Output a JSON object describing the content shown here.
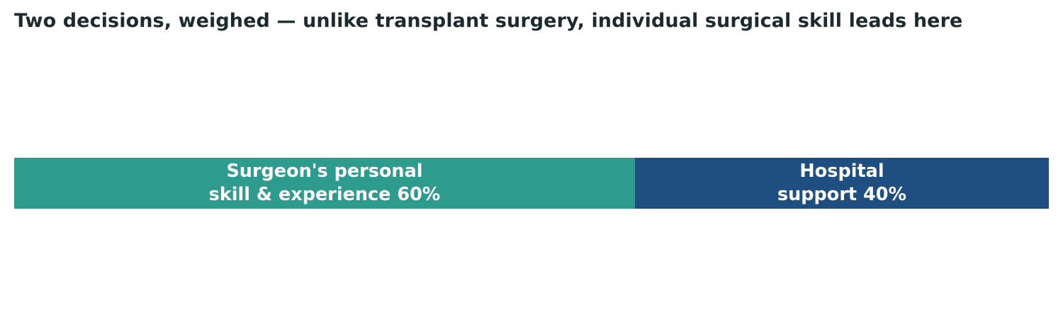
{
  "chart_data": {
    "type": "bar",
    "orientation": "horizontal",
    "stacked": true,
    "title": "Two decisions, weighed — unlike transplant surgery, individual surgical skill leads here",
    "xlabel": "",
    "ylabel": "",
    "xlim": [
      0,
      100
    ],
    "grid": false,
    "legend": "none",
    "categories": [
      ""
    ],
    "series": [
      {
        "name": "Surgeon's personal skill & experience",
        "values": [
          60
        ],
        "label": "Surgeon's personal\nskill & experience 60%",
        "color": "#2e9b8f"
      },
      {
        "name": "Hospital support",
        "values": [
          40
        ],
        "label": "Hospital\nsupport 40%",
        "color": "#1e4f80"
      }
    ]
  }
}
